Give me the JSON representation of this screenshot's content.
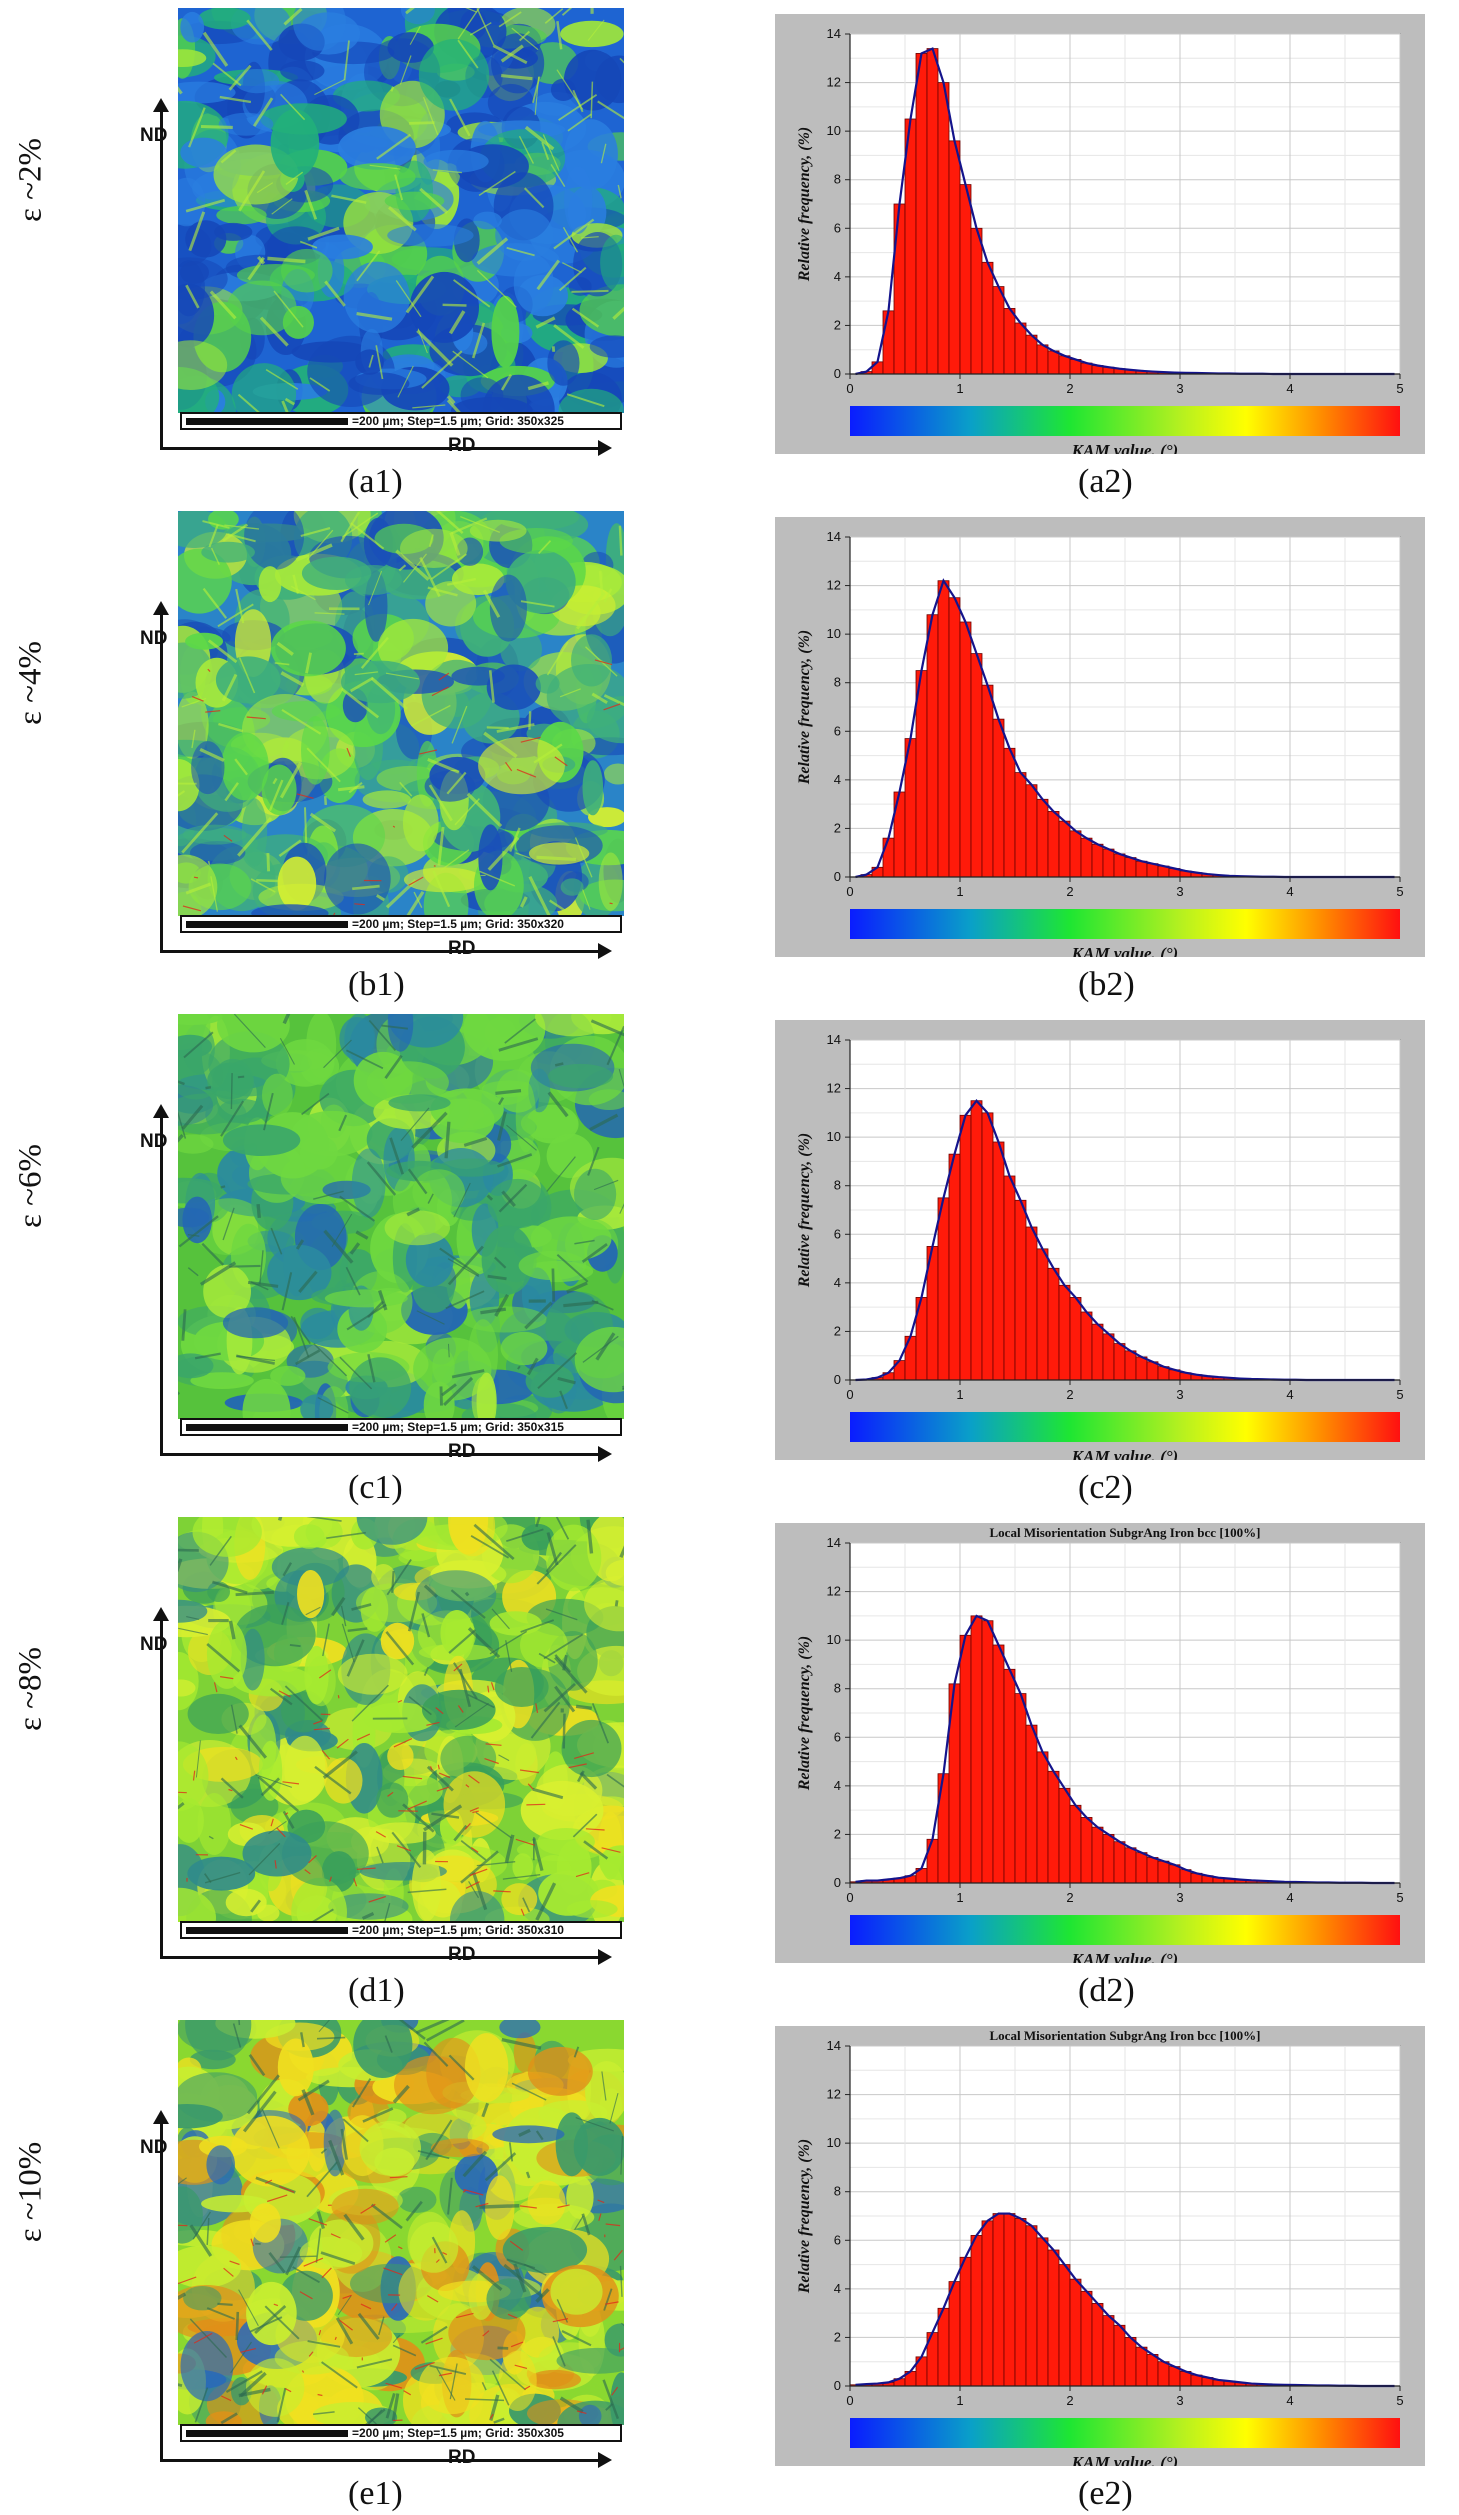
{
  "common": {
    "nd_label": "ND",
    "rd_label": "RD",
    "y_axis_label": "Relative frequency, (%)",
    "x_axis_label": "KAM value, (°)",
    "x_ticks": [
      "0",
      "1",
      "2",
      "3",
      "4",
      "5"
    ],
    "y_ticks": [
      "0",
      "2",
      "4",
      "6",
      "8",
      "10",
      "12",
      "14"
    ],
    "colors": {
      "bar": "#ff1a0a",
      "curve": "#14148c",
      "panel": "#bdbdbd"
    }
  },
  "rows": [
    {
      "strain": "ε ~2%",
      "map_caption": "(a1)",
      "chart_caption": "(a2)",
      "scale_text": "=200 µm; Step=1.5 µm; Grid: 350x325",
      "map_style": "blue"
    },
    {
      "strain": "ε ~4%",
      "map_caption": "(b1)",
      "chart_caption": "(b2)",
      "scale_text": "=200 µm; Step=1.5 µm; Grid: 350x320",
      "map_style": "bluegreen"
    },
    {
      "strain": "ε ~6%",
      "map_caption": "(c1)",
      "chart_caption": "(c2)",
      "scale_text": "=200 µm; Step=1.5 µm; Grid: 350x315",
      "map_style": "green"
    },
    {
      "strain": "ε ~8%",
      "map_caption": "(d1)",
      "chart_caption": "(d2)",
      "scale_text": "=200 µm; Step=1.5 µm; Grid: 350x310",
      "map_style": "greenyellow"
    },
    {
      "strain": "ε ~10%",
      "map_caption": "(e1)",
      "chart_caption": "(e2)",
      "scale_text": "=200 µm; Step=1.5 µm; Grid: 350x305",
      "map_style": "yellowred"
    }
  ],
  "chart_data": [
    {
      "type": "bar",
      "title": "",
      "xlabel": "KAM value, (°)",
      "ylabel": "Relative frequency, (%)",
      "xlim": [
        0,
        5
      ],
      "ylim": [
        0,
        14
      ],
      "bin_width": 0.1,
      "x": [
        0.0,
        0.1,
        0.2,
        0.3,
        0.4,
        0.5,
        0.6,
        0.7,
        0.8,
        0.9,
        1.0,
        1.1,
        1.2,
        1.3,
        1.4,
        1.5,
        1.6,
        1.7,
        1.8,
        1.9,
        2.0,
        2.1,
        2.2,
        2.3,
        2.4,
        2.5,
        2.6,
        2.7,
        2.8,
        2.9,
        3.0,
        3.1,
        3.2,
        3.3,
        3.4,
        3.5,
        3.6,
        3.7,
        3.8,
        3.9,
        4.0,
        4.1,
        4.2,
        4.3,
        4.4,
        4.5,
        4.6,
        4.7,
        4.8,
        4.9
      ],
      "values": [
        0,
        0.1,
        0.5,
        2.6,
        7.0,
        10.5,
        13.2,
        13.4,
        12.0,
        9.6,
        7.8,
        6.0,
        4.6,
        3.6,
        2.7,
        2.1,
        1.6,
        1.2,
        0.95,
        0.75,
        0.6,
        0.45,
        0.35,
        0.28,
        0.22,
        0.17,
        0.13,
        0.1,
        0.08,
        0.06,
        0.05,
        0.04,
        0.03,
        0.02,
        0.02,
        0.01,
        0.01,
        0.01,
        0,
        0,
        0,
        0,
        0,
        0,
        0,
        0,
        0,
        0,
        0,
        0
      ]
    },
    {
      "type": "bar",
      "title": "",
      "xlabel": "KAM value, (°)",
      "ylabel": "Relative frequency, (%)",
      "xlim": [
        0,
        5
      ],
      "ylim": [
        0,
        14
      ],
      "bin_width": 0.1,
      "x": [
        0.0,
        0.1,
        0.2,
        0.3,
        0.4,
        0.5,
        0.6,
        0.7,
        0.8,
        0.9,
        1.0,
        1.1,
        1.2,
        1.3,
        1.4,
        1.5,
        1.6,
        1.7,
        1.8,
        1.9,
        2.0,
        2.1,
        2.2,
        2.3,
        2.4,
        2.5,
        2.6,
        2.7,
        2.8,
        2.9,
        3.0,
        3.1,
        3.2,
        3.3,
        3.4,
        3.5,
        3.6,
        3.7,
        3.8,
        3.9,
        4.0,
        4.1,
        4.2,
        4.3,
        4.4,
        4.5,
        4.6,
        4.7,
        4.8,
        4.9
      ],
      "values": [
        0,
        0.1,
        0.4,
        1.6,
        3.5,
        5.7,
        8.5,
        10.8,
        12.2,
        11.5,
        10.5,
        9.2,
        7.9,
        6.5,
        5.3,
        4.3,
        3.8,
        3.2,
        2.7,
        2.3,
        1.9,
        1.6,
        1.35,
        1.15,
        0.95,
        0.8,
        0.65,
        0.55,
        0.45,
        0.35,
        0.25,
        0.18,
        0.12,
        0.08,
        0.05,
        0.03,
        0.02,
        0.01,
        0.01,
        0,
        0,
        0,
        0,
        0,
        0,
        0,
        0,
        0,
        0,
        0
      ]
    },
    {
      "type": "bar",
      "title": "",
      "xlabel": "KAM value, (°)",
      "ylabel": "Relative frequency, (%)",
      "xlim": [
        0,
        5
      ],
      "ylim": [
        0,
        14
      ],
      "bin_width": 0.1,
      "x": [
        0.0,
        0.1,
        0.2,
        0.3,
        0.4,
        0.5,
        0.6,
        0.7,
        0.8,
        0.9,
        1.0,
        1.1,
        1.2,
        1.3,
        1.4,
        1.5,
        1.6,
        1.7,
        1.8,
        1.9,
        2.0,
        2.1,
        2.2,
        2.3,
        2.4,
        2.5,
        2.6,
        2.7,
        2.8,
        2.9,
        3.0,
        3.1,
        3.2,
        3.3,
        3.4,
        3.5,
        3.6,
        3.7,
        3.8,
        3.9,
        4.0,
        4.1,
        4.2,
        4.3,
        4.4,
        4.5,
        4.6,
        4.7,
        4.8,
        4.9
      ],
      "values": [
        0,
        0.02,
        0.1,
        0.3,
        0.8,
        1.8,
        3.4,
        5.5,
        7.5,
        9.3,
        10.9,
        11.5,
        11.0,
        9.8,
        8.4,
        7.4,
        6.3,
        5.4,
        4.6,
        3.9,
        3.4,
        2.8,
        2.3,
        1.9,
        1.5,
        1.2,
        0.95,
        0.75,
        0.55,
        0.42,
        0.3,
        0.22,
        0.16,
        0.12,
        0.09,
        0.06,
        0.04,
        0.03,
        0.02,
        0.01,
        0.01,
        0,
        0,
        0,
        0,
        0,
        0,
        0,
        0,
        0
      ]
    },
    {
      "type": "bar",
      "title": "Local Misorientation SubgrAng  Iron bcc [100%]",
      "xlabel": "KAM value, (°)",
      "ylabel": "Relative frequency, (%)",
      "xlim": [
        0,
        5
      ],
      "ylim": [
        0,
        14
      ],
      "bin_width": 0.1,
      "x": [
        0.0,
        0.1,
        0.2,
        0.3,
        0.4,
        0.5,
        0.6,
        0.7,
        0.8,
        0.9,
        1.0,
        1.1,
        1.2,
        1.3,
        1.4,
        1.5,
        1.6,
        1.7,
        1.8,
        1.9,
        2.0,
        2.1,
        2.2,
        2.3,
        2.4,
        2.5,
        2.6,
        2.7,
        2.8,
        2.9,
        3.0,
        3.1,
        3.2,
        3.3,
        3.4,
        3.5,
        3.6,
        3.7,
        3.8,
        3.9,
        4.0,
        4.1,
        4.2,
        4.3,
        4.4,
        4.5,
        4.6,
        4.7,
        4.8,
        4.9
      ],
      "values": [
        0.05,
        0.1,
        0.1,
        0.15,
        0.2,
        0.3,
        0.6,
        1.8,
        4.5,
        8.2,
        10.2,
        11.0,
        10.8,
        9.8,
        8.8,
        7.8,
        6.5,
        5.4,
        4.6,
        3.9,
        3.2,
        2.7,
        2.3,
        2.0,
        1.7,
        1.45,
        1.25,
        1.05,
        0.9,
        0.75,
        0.55,
        0.4,
        0.3,
        0.22,
        0.18,
        0.14,
        0.11,
        0.09,
        0.07,
        0.05,
        0.04,
        0.03,
        0.02,
        0.02,
        0.01,
        0.01,
        0.01,
        0,
        0,
        0
      ]
    },
    {
      "type": "bar",
      "title": "Local Misorientation SubgrAng  Iron bcc [100%]",
      "xlabel": "KAM value, (°)",
      "ylabel": "Relative frequency, (%)",
      "xlim": [
        0,
        5
      ],
      "ylim": [
        0,
        14
      ],
      "bin_width": 0.1,
      "x": [
        0.0,
        0.1,
        0.2,
        0.3,
        0.4,
        0.5,
        0.6,
        0.7,
        0.8,
        0.9,
        1.0,
        1.1,
        1.2,
        1.3,
        1.4,
        1.5,
        1.6,
        1.7,
        1.8,
        1.9,
        2.0,
        2.1,
        2.2,
        2.3,
        2.4,
        2.5,
        2.6,
        2.7,
        2.8,
        2.9,
        3.0,
        3.1,
        3.2,
        3.3,
        3.4,
        3.5,
        3.6,
        3.7,
        3.8,
        3.9,
        4.0,
        4.1,
        4.2,
        4.3,
        4.4,
        4.5,
        4.6,
        4.7,
        4.8,
        4.9
      ],
      "values": [
        0.05,
        0.08,
        0.1,
        0.15,
        0.3,
        0.6,
        1.2,
        2.2,
        3.2,
        4.3,
        5.3,
        6.2,
        6.8,
        7.1,
        7.1,
        6.9,
        6.6,
        6.1,
        5.6,
        5.0,
        4.4,
        3.9,
        3.4,
        2.9,
        2.5,
        2.0,
        1.6,
        1.3,
        1.0,
        0.8,
        0.6,
        0.45,
        0.35,
        0.25,
        0.2,
        0.15,
        0.1,
        0.08,
        0.06,
        0.05,
        0.04,
        0.03,
        0.02,
        0.02,
        0.01,
        0.01,
        0,
        0,
        0,
        0
      ]
    }
  ]
}
